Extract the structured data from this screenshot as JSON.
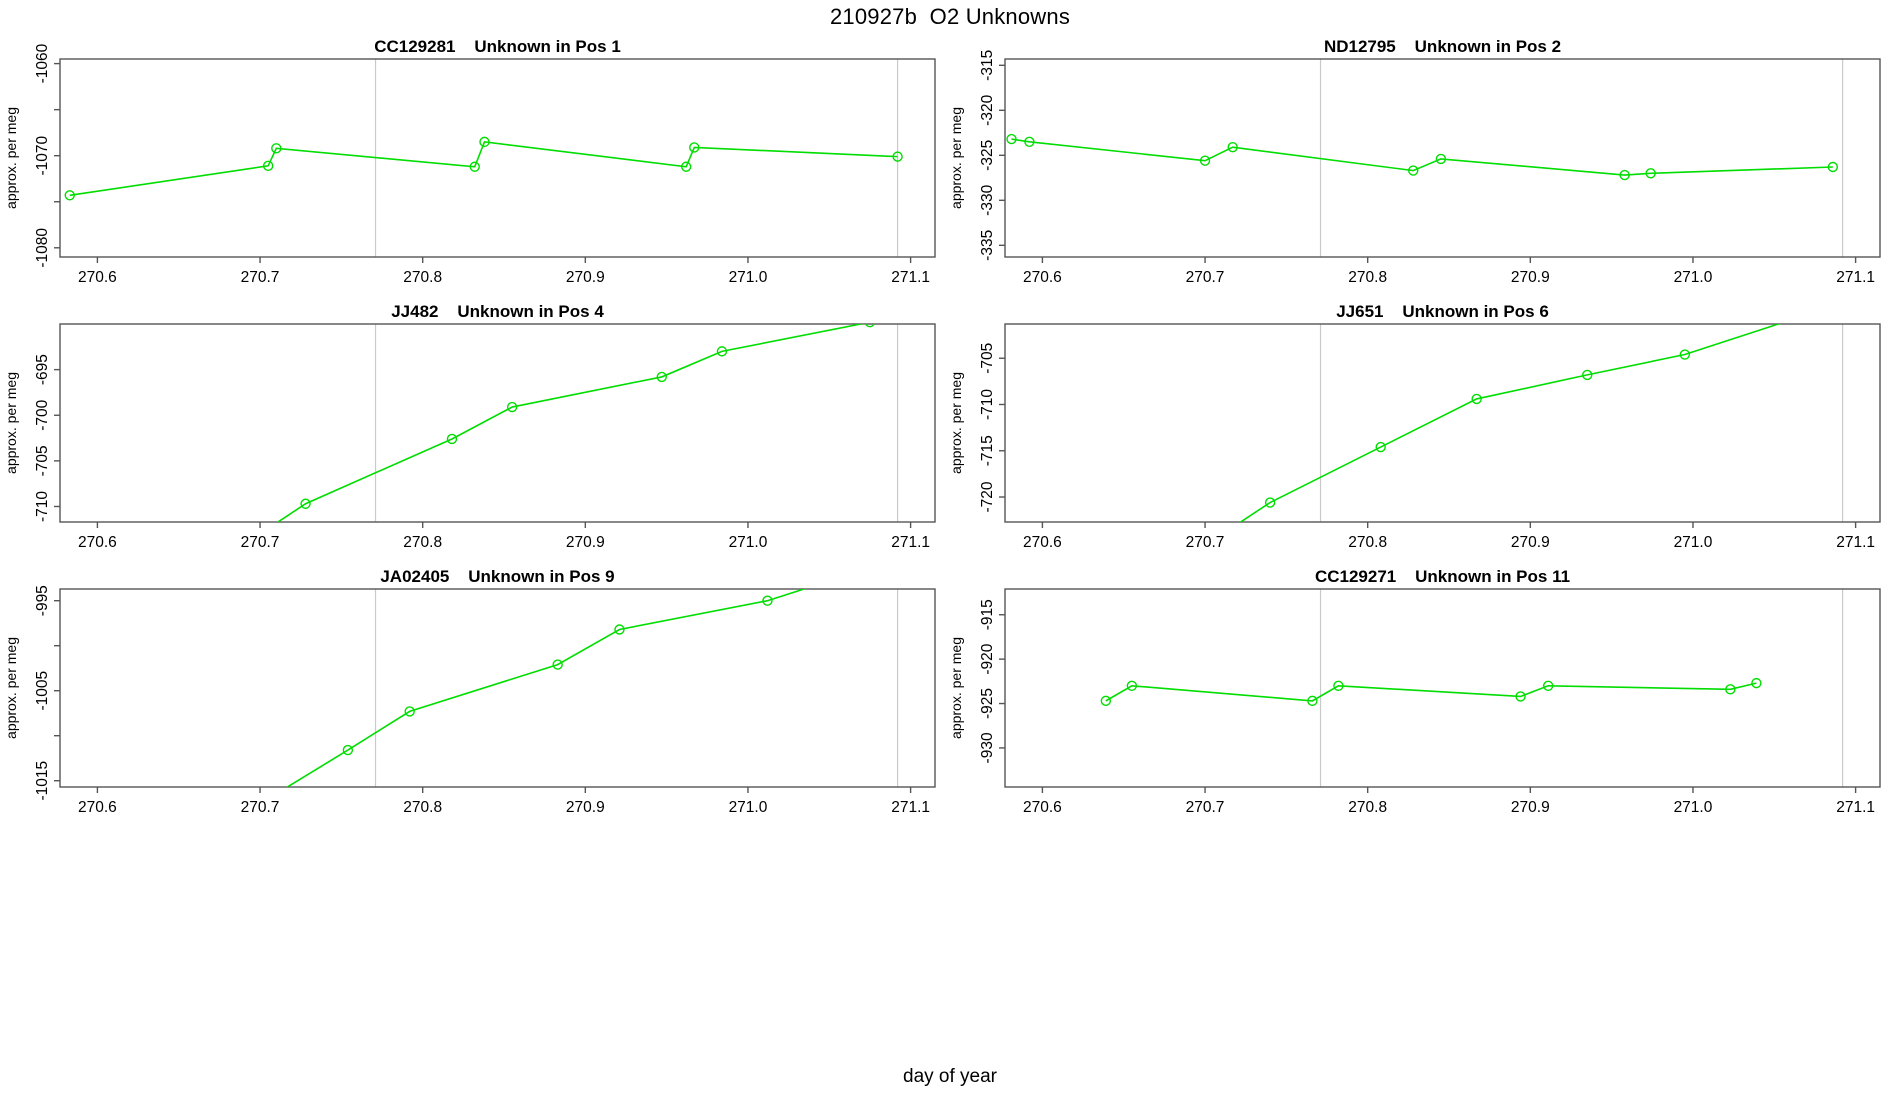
{
  "figure": {
    "title": "210927b  O2 Unknowns",
    "xlabel": "day of year",
    "ylabel": "approx. per meg",
    "line_color": "#00dd00",
    "marker_color": "#00dd00",
    "vline_color": "#cacaca",
    "axis_color": "#555555",
    "text_color": "#000000",
    "background_color": "#ffffff"
  },
  "axes_shared": {
    "xlim": [
      270.577,
      271.115
    ],
    "xticks": [
      270.6,
      270.7,
      270.8,
      270.9,
      271.0,
      271.1
    ],
    "xtick_labels": [
      "270.6",
      "270.7",
      "270.8",
      "270.9",
      "271.0",
      "271.1"
    ],
    "vlines": [
      270.771,
      271.092
    ],
    "grid": false,
    "legend": "none"
  },
  "chart_data": [
    {
      "type": "line",
      "id": "CC129281",
      "title": "CC129281    Unknown in Pos 1",
      "ylabel": "approx. per meg",
      "ylim": [
        -1081.0,
        -1059.5
      ],
      "yticks": [
        -1080,
        -1075,
        -1070,
        -1065,
        -1060
      ],
      "ytick_labels": [
        "-1080",
        "",
        "-1070",
        "",
        "-1060"
      ],
      "x": [
        270.583,
        270.705,
        270.71,
        270.832,
        270.838,
        270.962,
        270.967,
        271.092
      ],
      "y": [
        -1074.3,
        -1071.1,
        -1069.2,
        -1071.2,
        -1068.5,
        -1071.2,
        -1069.1,
        -1070.1
      ]
    },
    {
      "type": "line",
      "id": "ND12795",
      "title": "ND12795    Unknown in Pos 2",
      "ylabel": "approx. per meg",
      "ylim": [
        -336.3,
        -314.3
      ],
      "yticks": [
        -335,
        -330,
        -325,
        -320,
        -315
      ],
      "ytick_labels": [
        "-335",
        "-330",
        "-325",
        "-320",
        "-315"
      ],
      "x": [
        270.581,
        270.592,
        270.7,
        270.717,
        270.828,
        270.845,
        270.958,
        270.974,
        271.086
      ],
      "y": [
        -323.2,
        -323.5,
        -325.6,
        -324.1,
        -326.7,
        -325.4,
        -327.2,
        -327.0,
        -326.3
      ]
    },
    {
      "type": "line",
      "id": "JJ482",
      "title": "JJ482    Unknown in Pos 4",
      "ylabel": "approx. per meg",
      "ylim": [
        -711.7,
        -690.0
      ],
      "yticks": [
        -710,
        -705,
        -700,
        -695
      ],
      "ytick_labels": [
        "-710",
        "-705",
        "-700",
        "-695"
      ],
      "x": [
        270.7,
        270.728,
        270.818,
        270.855,
        270.947,
        270.984,
        271.075
      ],
      "y": [
        -713.0,
        -709.7,
        -702.6,
        -699.1,
        -695.8,
        -693.0,
        -689.8
      ]
    },
    {
      "type": "line",
      "id": "JJ651",
      "title": "JJ651    Unknown in Pos 6",
      "ylabel": "approx. per meg",
      "ylim": [
        -722.7,
        -701.3
      ],
      "yticks": [
        -720,
        -715,
        -710,
        -705
      ],
      "ytick_labels": [
        "-720",
        "-715",
        "-710",
        "-705"
      ],
      "x": [
        270.715,
        270.74,
        270.808,
        270.867,
        270.935,
        270.995,
        271.07
      ],
      "y": [
        -723.5,
        -720.6,
        -714.6,
        -709.4,
        -706.8,
        -704.6,
        -700.3
      ]
    },
    {
      "type": "line",
      "id": "JA02405",
      "title": "JA02405    Unknown in Pos 9",
      "ylabel": "approx. per meg",
      "ylim": [
        -1015.7,
        -993.7
      ],
      "yticks": [
        -1015,
        -1010,
        -1005,
        -1000,
        -995
      ],
      "ytick_labels": [
        "-1015",
        "",
        "-1005",
        "",
        "-995"
      ],
      "x": [
        270.705,
        270.754,
        270.792,
        270.883,
        270.921,
        271.012,
        271.05
      ],
      "y": [
        -1017.0,
        -1011.6,
        -1007.3,
        -1002.1,
        -998.2,
        -995.0,
        -992.8
      ]
    },
    {
      "type": "line",
      "id": "CC129271",
      "title": "CC129271    Unknown in Pos 11",
      "ylabel": "approx. per meg",
      "ylim": [
        -934.4,
        -912.1
      ],
      "yticks": [
        -930,
        -925,
        -920,
        -915
      ],
      "ytick_labels": [
        "-930",
        "-925",
        "-920",
        "-915"
      ],
      "x": [
        270.639,
        270.655,
        270.766,
        270.782,
        270.894,
        270.911,
        271.023,
        271.039
      ],
      "y": [
        -924.7,
        -923.0,
        -924.7,
        -923.0,
        -924.2,
        -923.0,
        -923.4,
        -922.7
      ]
    }
  ]
}
